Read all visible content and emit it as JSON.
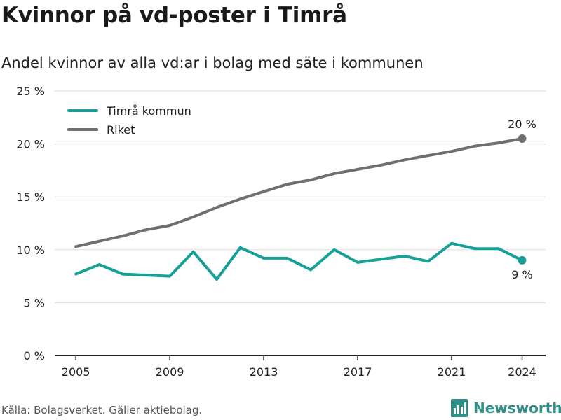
{
  "title": "Kvinnor på vd-poster i Timrå",
  "subtitle": "Andel kvinnor av alla vd:ar i bolag med säte i kommunen",
  "footer": "Källa: Bolagsverket. Gäller aktiebolag.",
  "brand": "Newsworthy",
  "colors": {
    "timra": "#16a097",
    "riket": "#6f6e73",
    "grid": "#dddddd",
    "axis": "#222222",
    "brand": "#2f8f86"
  },
  "chart_data": {
    "type": "line",
    "title": "Kvinnor på vd-poster i Timrå",
    "subtitle": "Andel kvinnor av alla vd:ar i bolag med säte i kommunen",
    "xlabel": "",
    "ylabel": "",
    "ylim": [
      0,
      25
    ],
    "xlim": [
      2004.1,
      2025
    ],
    "yticks": [
      0,
      5,
      10,
      15,
      20,
      25
    ],
    "ytick_labels": [
      "0 %",
      "5 %",
      "10 %",
      "15 %",
      "20 %",
      "25 %"
    ],
    "xticks": [
      2005,
      2009,
      2013,
      2017,
      2021,
      2024
    ],
    "xtick_labels": [
      "2005",
      "2009",
      "2013",
      "2017",
      "2021",
      "2024"
    ],
    "grid": true,
    "legend_position": "top-left",
    "x": [
      2005,
      2006,
      2007,
      2008,
      2009,
      2010,
      2011,
      2012,
      2013,
      2014,
      2015,
      2016,
      2017,
      2018,
      2019,
      2020,
      2021,
      2022,
      2023,
      2024
    ],
    "series": [
      {
        "name": "Timrå kommun",
        "color": "#16a097",
        "values": [
          7.7,
          8.6,
          7.7,
          7.6,
          7.5,
          9.8,
          7.2,
          10.2,
          9.2,
          9.2,
          8.1,
          10.0,
          8.8,
          9.1,
          9.4,
          8.9,
          10.6,
          10.1,
          10.1,
          9.0
        ],
        "end_label": "9 %"
      },
      {
        "name": "Riket",
        "color": "#6f6e73",
        "values": [
          10.3,
          10.8,
          11.3,
          11.9,
          12.3,
          13.1,
          14.0,
          14.8,
          15.5,
          16.2,
          16.6,
          17.2,
          17.6,
          18.0,
          18.5,
          18.9,
          19.3,
          19.8,
          20.1,
          20.5
        ],
        "end_label": "20 %"
      }
    ]
  }
}
